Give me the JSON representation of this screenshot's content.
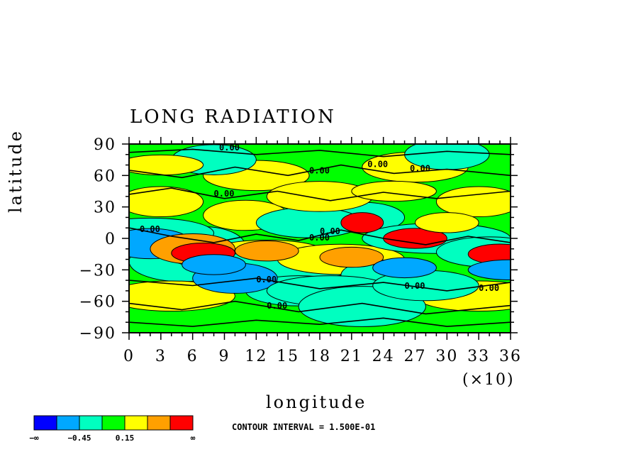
{
  "chart_data": {
    "type": "heatmap",
    "title": "LONG RADIATION",
    "xlabel": "longitude",
    "ylabel": "latitude",
    "x_scale_note": "(×10)",
    "x_ticks": [
      "0",
      "3",
      "6",
      "9",
      "12",
      "15",
      "18",
      "21",
      "24",
      "27",
      "30",
      "33",
      "36"
    ],
    "y_ticks": [
      "90",
      "60",
      "30",
      "0",
      "−30",
      "−60",
      "−90"
    ],
    "xlim": [
      0,
      36
    ],
    "ylim": [
      -90,
      90
    ],
    "contour_labels": [
      "0.00",
      "0.00",
      "0.00",
      "0.00",
      "0.00",
      "0.00",
      "0.00",
      "0.00",
      "0.00",
      "0.00",
      "0.00",
      "0.00"
    ],
    "contour_interval_text": "CONTOUR INTERVAL = 1.500E-01",
    "colorbar": {
      "colors": [
        "#0000ff",
        "#00a8ff",
        "#00ffc0",
        "#00ff00",
        "#ffff00",
        "#ffa000",
        "#ff0000"
      ],
      "labels": [
        "−∞",
        "−0.45",
        "0.15",
        "∞"
      ]
    },
    "background_color": "#00ff00"
  }
}
